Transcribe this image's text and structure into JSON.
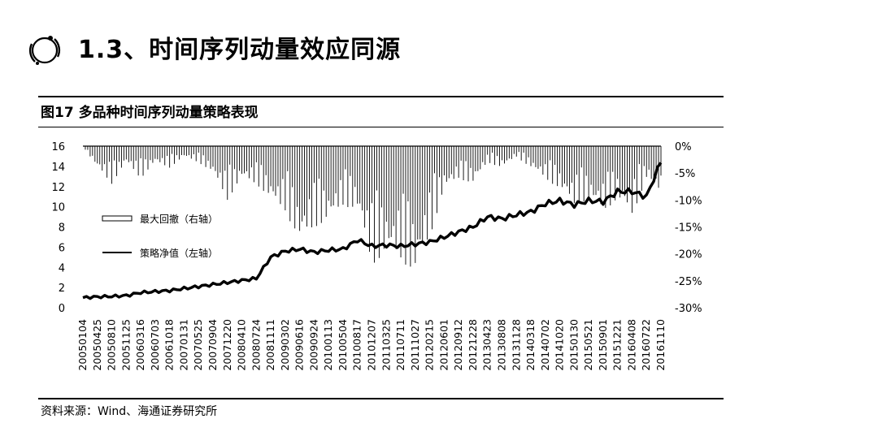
{
  "header": {
    "section_title": "1.3、时间序列动量效应同源",
    "icon": "orbit-circle-icon"
  },
  "figure": {
    "title": "图17 多品种时间序列动量策略表现",
    "source": "资料来源：Wind、海通证券研究所"
  },
  "chart_data": {
    "type": "line",
    "title": "",
    "x_tick_labels": [
      "20050104",
      "20050425",
      "20050810",
      "20051125",
      "20060316",
      "20060703",
      "20061018",
      "20070131",
      "20070525",
      "20070904",
      "20071220",
      "20080410",
      "20080724",
      "20081111",
      "20090302",
      "20090616",
      "20090924",
      "20100113",
      "20100504",
      "20100817",
      "20101207",
      "20110325",
      "20110711",
      "20111027",
      "20120215",
      "20120601",
      "20120912",
      "20121228",
      "20130423",
      "20130808",
      "20131128",
      "20140318",
      "20140702",
      "20141020",
      "20150130",
      "20150521",
      "20150901",
      "20151221",
      "20160408",
      "20160722",
      "20161110"
    ],
    "left_axis": {
      "ylim": [
        0,
        16
      ],
      "ticks": [
        "0",
        "2",
        "4",
        "6",
        "8",
        "10",
        "12",
        "14",
        "16"
      ]
    },
    "right_axis": {
      "ylim": [
        -0.3,
        0
      ],
      "ticks": [
        "0%",
        "-5%",
        "-10%",
        "-15%",
        "-20%",
        "-25%",
        "-30%"
      ]
    },
    "series": [
      {
        "name": "策略净值（左轴）",
        "axis": "left",
        "style": "line",
        "color": "#000000",
        "values": [
          1.0,
          1.08,
          1.12,
          1.2,
          1.5,
          1.6,
          1.7,
          1.9,
          2.1,
          2.3,
          2.5,
          2.7,
          2.9,
          5.0,
          5.6,
          5.8,
          5.5,
          5.7,
          5.8,
          6.7,
          6.1,
          6.2,
          6.1,
          6.3,
          6.5,
          7.0,
          7.5,
          8.0,
          9.0,
          8.8,
          9.2,
          9.5,
          10.3,
          10.6,
          10.2,
          10.6,
          10.5,
          11.5,
          11.5,
          11.0,
          14.5
        ]
      },
      {
        "name": "最大回撤（右轴）",
        "axis": "right",
        "style": "drawdown-bars",
        "color": "#000000",
        "values": [
          0,
          -0.04,
          -0.07,
          -0.03,
          -0.06,
          -0.03,
          -0.04,
          -0.02,
          -0.03,
          -0.05,
          -0.1,
          -0.06,
          -0.07,
          -0.1,
          -0.12,
          -0.18,
          -0.15,
          -0.14,
          -0.11,
          -0.12,
          -0.22,
          -0.2,
          -0.21,
          -0.24,
          -0.17,
          -0.08,
          -0.06,
          -0.07,
          -0.03,
          -0.04,
          -0.02,
          -0.04,
          -0.06,
          -0.08,
          -0.11,
          -0.1,
          -0.12,
          -0.1,
          -0.13,
          -0.06,
          -0.09
        ]
      }
    ],
    "legend": {
      "items": [
        "最大回撤（右轴）",
        "策略净值（左轴）"
      ]
    },
    "grid": false
  }
}
